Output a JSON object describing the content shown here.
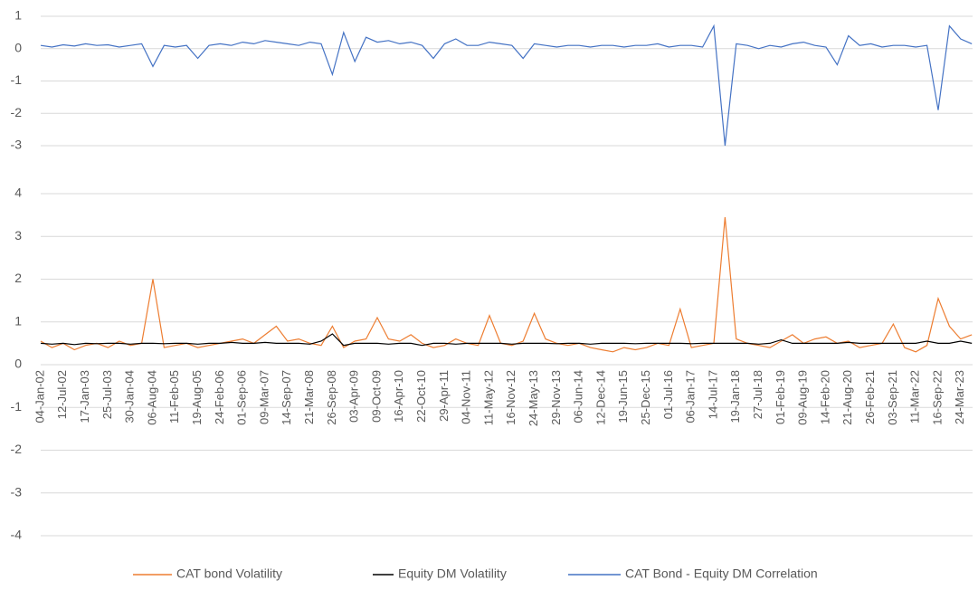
{
  "chart_data": {
    "type": "line",
    "categories": [
      "04-Jan-02",
      null,
      "12-Jul-02",
      null,
      "17-Jan-03",
      null,
      "25-Jul-03",
      null,
      "30-Jan-04",
      null,
      "06-Aug-04",
      null,
      "11-Feb-05",
      null,
      "19-Aug-05",
      null,
      "24-Feb-06",
      null,
      "01-Sep-06",
      null,
      "09-Mar-07",
      null,
      "14-Sep-07",
      null,
      "21-Mar-08",
      null,
      "26-Sep-08",
      null,
      "03-Apr-09",
      null,
      "09-Oct-09",
      null,
      "16-Apr-10",
      null,
      "22-Oct-10",
      null,
      "29-Apr-11",
      null,
      "04-Nov-11",
      null,
      "11-May-12",
      null,
      "16-Nov-12",
      null,
      "24-May-13",
      null,
      "29-Nov-13",
      null,
      "06-Jun-14",
      null,
      "12-Dec-14",
      null,
      "19-Jun-15",
      null,
      "25-Dec-15",
      null,
      "01-Jul-16",
      null,
      "06-Jan-17",
      null,
      "14-Jul-17",
      null,
      "19-Jan-18",
      null,
      "27-Jul-18",
      null,
      "01-Feb-19",
      null,
      "09-Aug-19",
      null,
      "14-Feb-20",
      null,
      "21-Aug-20",
      null,
      "26-Feb-21",
      null,
      "03-Sep-21",
      null,
      "11-Mar-22",
      null,
      "16-Sep-22",
      null,
      "24-Mar-23",
      null
    ],
    "series": [
      {
        "name": "CAT bond Volatility",
        "color": "#ed7d31",
        "values": [
          0.55,
          0.4,
          0.5,
          0.35,
          0.45,
          0.5,
          0.4,
          0.55,
          0.45,
          0.5,
          2.0,
          0.4,
          0.45,
          0.5,
          0.4,
          0.45,
          0.5,
          0.55,
          0.6,
          0.5,
          0.7,
          0.9,
          0.55,
          0.6,
          0.5,
          0.45,
          0.9,
          0.4,
          0.55,
          0.6,
          1.1,
          0.6,
          0.55,
          0.7,
          0.5,
          0.4,
          0.45,
          0.6,
          0.5,
          0.45,
          1.15,
          0.5,
          0.45,
          0.55,
          1.2,
          0.6,
          0.5,
          0.45,
          0.5,
          0.4,
          0.35,
          0.3,
          0.4,
          0.35,
          0.4,
          0.5,
          0.45,
          1.3,
          0.4,
          0.45,
          0.5,
          3.45,
          0.6,
          0.5,
          0.45,
          0.4,
          0.55,
          0.7,
          0.5,
          0.6,
          0.65,
          0.5,
          0.55,
          0.4,
          0.45,
          0.5,
          0.95,
          0.4,
          0.3,
          0.45,
          1.55,
          0.9,
          0.6,
          0.7
        ]
      },
      {
        "name": "Equity DM Volatility",
        "color": "#000000",
        "values": [
          0.5,
          0.48,
          0.5,
          0.47,
          0.5,
          0.49,
          0.5,
          0.5,
          0.48,
          0.5,
          0.5,
          0.49,
          0.5,
          0.5,
          0.48,
          0.5,
          0.5,
          0.52,
          0.5,
          0.5,
          0.52,
          0.5,
          0.5,
          0.5,
          0.48,
          0.55,
          0.72,
          0.45,
          0.5,
          0.5,
          0.5,
          0.48,
          0.5,
          0.5,
          0.45,
          0.5,
          0.5,
          0.48,
          0.5,
          0.5,
          0.5,
          0.5,
          0.48,
          0.5,
          0.5,
          0.5,
          0.49,
          0.5,
          0.5,
          0.48,
          0.5,
          0.5,
          0.5,
          0.49,
          0.5,
          0.5,
          0.5,
          0.5,
          0.49,
          0.5,
          0.5,
          0.5,
          0.5,
          0.5,
          0.48,
          0.5,
          0.58,
          0.5,
          0.5,
          0.5,
          0.5,
          0.5,
          0.52,
          0.5,
          0.5,
          0.5,
          0.5,
          0.5,
          0.5,
          0.55,
          0.5,
          0.5,
          0.55,
          0.5
        ]
      },
      {
        "name": "CAT Bond - Equity DM Correlation",
        "color": "#4472c4",
        "axis": "y2",
        "values": [
          0.1,
          0.05,
          0.12,
          0.08,
          0.15,
          0.1,
          0.12,
          0.05,
          0.1,
          0.15,
          -0.55,
          0.1,
          0.05,
          0.1,
          -0.3,
          0.1,
          0.15,
          0.1,
          0.2,
          0.15,
          0.25,
          0.2,
          0.15,
          0.1,
          0.2,
          0.15,
          -0.8,
          0.5,
          -0.4,
          0.35,
          0.2,
          0.25,
          0.15,
          0.2,
          0.1,
          -0.3,
          0.15,
          0.3,
          0.1,
          0.1,
          0.2,
          0.15,
          0.1,
          -0.3,
          0.15,
          0.1,
          0.05,
          0.1,
          0.1,
          0.05,
          0.1,
          0.1,
          0.05,
          0.1,
          0.1,
          0.15,
          0.05,
          0.1,
          0.1,
          0.05,
          0.7,
          -3,
          0.15,
          0.1,
          0,
          0.1,
          0.05,
          0.15,
          0.2,
          0.1,
          0.05,
          -0.5,
          0.4,
          0.1,
          0.15,
          0.05,
          0.1,
          0.1,
          0.05,
          0.1,
          -1.9,
          0.7,
          0.3,
          0.15
        ]
      }
    ],
    "ylim": [
      -4,
      4
    ],
    "yticks": [
      -4,
      -3,
      -2,
      -1,
      0,
      1,
      2,
      3,
      4
    ],
    "y2lim": [
      -3,
      1
    ],
    "y2ticks": [
      -3,
      -2,
      -1,
      0,
      1
    ],
    "grid": true,
    "legend": "bottom"
  }
}
